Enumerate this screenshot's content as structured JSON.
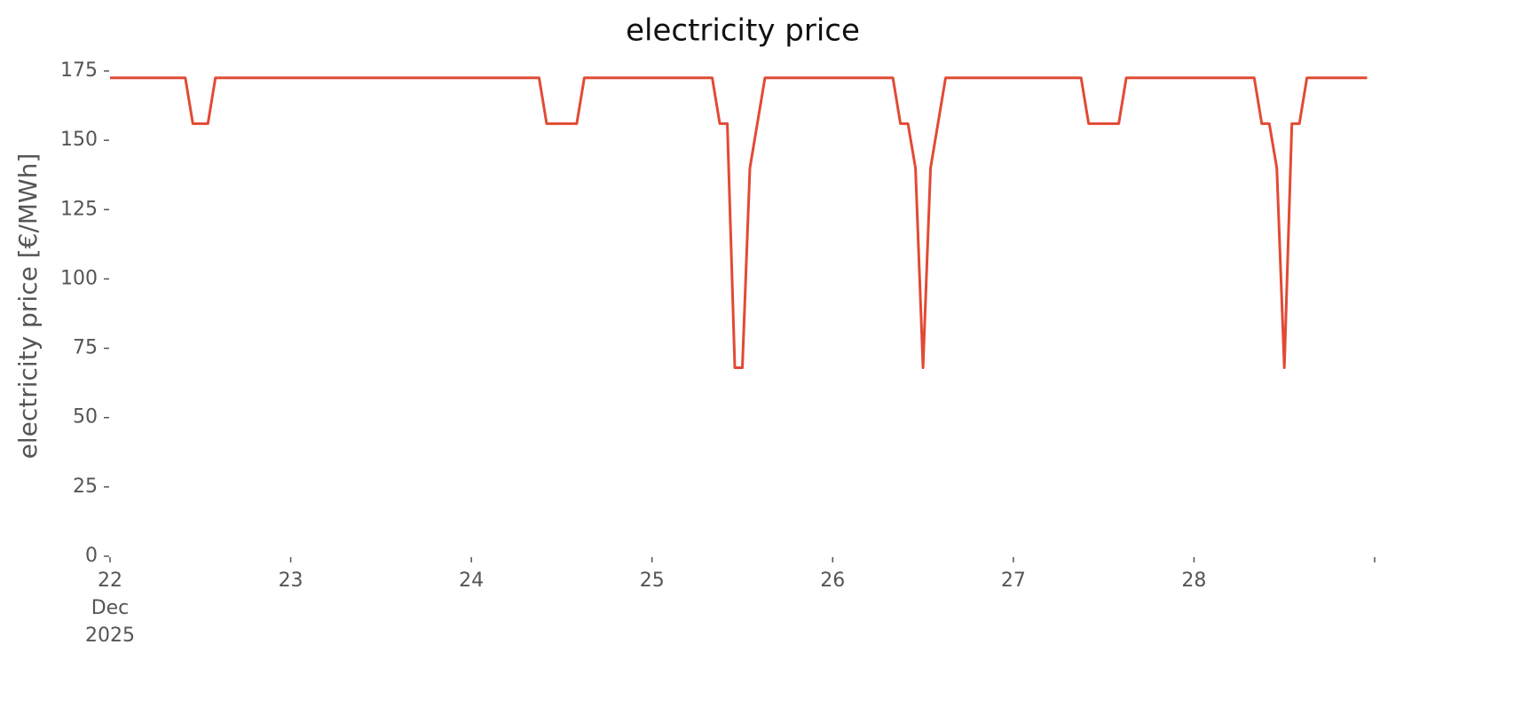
{
  "chart_data": {
    "type": "line",
    "title": "electricity price",
    "y_label": "electricity price [€/MWh]",
    "x": [
      22.0,
      22.4167,
      22.4583,
      22.5417,
      22.5833,
      24.375,
      24.4167,
      24.5833,
      24.625,
      25.3333,
      25.375,
      25.4167,
      25.4583,
      25.5,
      25.5417,
      25.625,
      26.3333,
      26.375,
      26.4167,
      26.4583,
      26.5,
      26.5417,
      26.625,
      27.375,
      27.4167,
      27.5833,
      27.625,
      28.3333,
      28.375,
      28.4167,
      28.4583,
      28.5,
      28.5417,
      28.5833,
      28.625,
      28.9583
    ],
    "series": [
      {
        "color": "#e24a33",
        "values": [
          172.5,
          172.5,
          156,
          156,
          172.5,
          172.5,
          156,
          156,
          172.5,
          172.5,
          156,
          156,
          68,
          68,
          140,
          172.5,
          172.5,
          156,
          156,
          140,
          68,
          140,
          172.5,
          172.5,
          156,
          156,
          172.5,
          172.5,
          156,
          156,
          140,
          68,
          156,
          156,
          172.5,
          172.5
        ]
      }
    ],
    "xlim": [
      22,
      29
    ],
    "xticks": [
      {
        "value": 22,
        "label": "22\nDec\n2025"
      },
      23,
      24,
      25,
      26,
      27,
      28,
      {
        "value": 29,
        "label": null
      }
    ],
    "ylim": [
      0,
      175
    ],
    "yticks": [
      0,
      25,
      50,
      75,
      100,
      125,
      150,
      175
    ],
    "grid": false
  }
}
